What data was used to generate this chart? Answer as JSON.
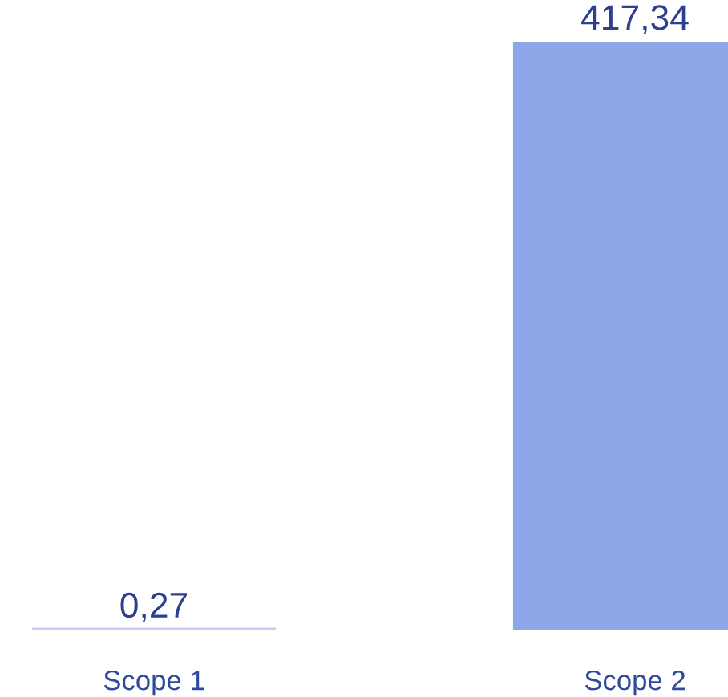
{
  "chart_data": {
    "type": "bar",
    "categories": [
      "Scope 1",
      "Scope 2"
    ],
    "values": [
      0.27,
      417.34
    ],
    "colors": [
      "#c6d0f2",
      "#8fa7e8"
    ],
    "value_labels": [
      "0,27",
      "417,34"
    ]
  }
}
